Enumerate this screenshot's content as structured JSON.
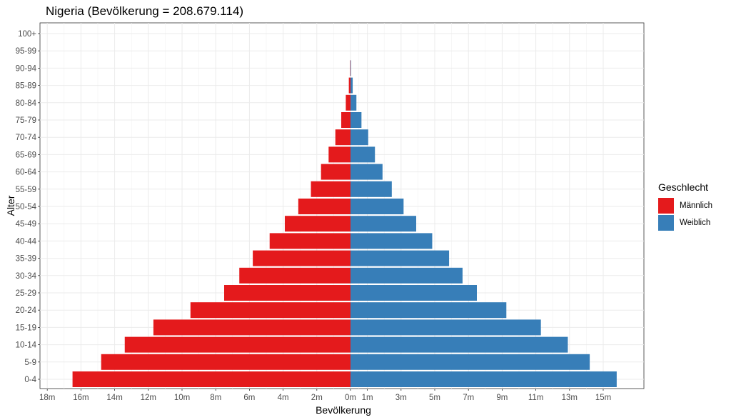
{
  "chart_data": {
    "type": "bar",
    "orientation": "horizontal-diverging",
    "title": "Nigeria (Bevölkerung = 208.679.114)",
    "xlabel": "Bevölkerung",
    "ylabel": "Alter",
    "categories": [
      "0-4",
      "5-9",
      "10-14",
      "15-19",
      "20-24",
      "25-29",
      "30-34",
      "35-39",
      "40-44",
      "45-49",
      "50-54",
      "55-59",
      "60-64",
      "65-69",
      "70-74",
      "75-79",
      "80-84",
      "85-89",
      "90-94",
      "95-99",
      "100+"
    ],
    "series": [
      {
        "name": "Männlich",
        "color": "#E41A1C",
        "values": [
          16500000,
          14800000,
          13400000,
          11700000,
          9500000,
          7500000,
          6600000,
          5800000,
          4800000,
          3900000,
          3100000,
          2350000,
          1750000,
          1300000,
          900000,
          550000,
          280000,
          100000,
          20000,
          0,
          0
        ]
      },
      {
        "name": "Weiblich",
        "color": "#377EB8",
        "values": [
          15800000,
          14200000,
          12900000,
          11300000,
          9250000,
          7500000,
          6650000,
          5850000,
          4850000,
          3900000,
          3150000,
          2450000,
          1900000,
          1450000,
          1050000,
          650000,
          350000,
          130000,
          30000,
          0,
          0
        ]
      }
    ],
    "x_tick_labels": [
      "18m",
      "16m",
      "14m",
      "12m",
      "10m",
      "8m",
      "6m",
      "4m",
      "2m",
      "0m",
      "1m",
      "3m",
      "5m",
      "7m",
      "9m",
      "11m",
      "13m",
      "15m"
    ],
    "xlim": [
      -18000000,
      16000000
    ],
    "grid": true,
    "legend_placement": "right",
    "legend_title": "Geschlecht"
  }
}
